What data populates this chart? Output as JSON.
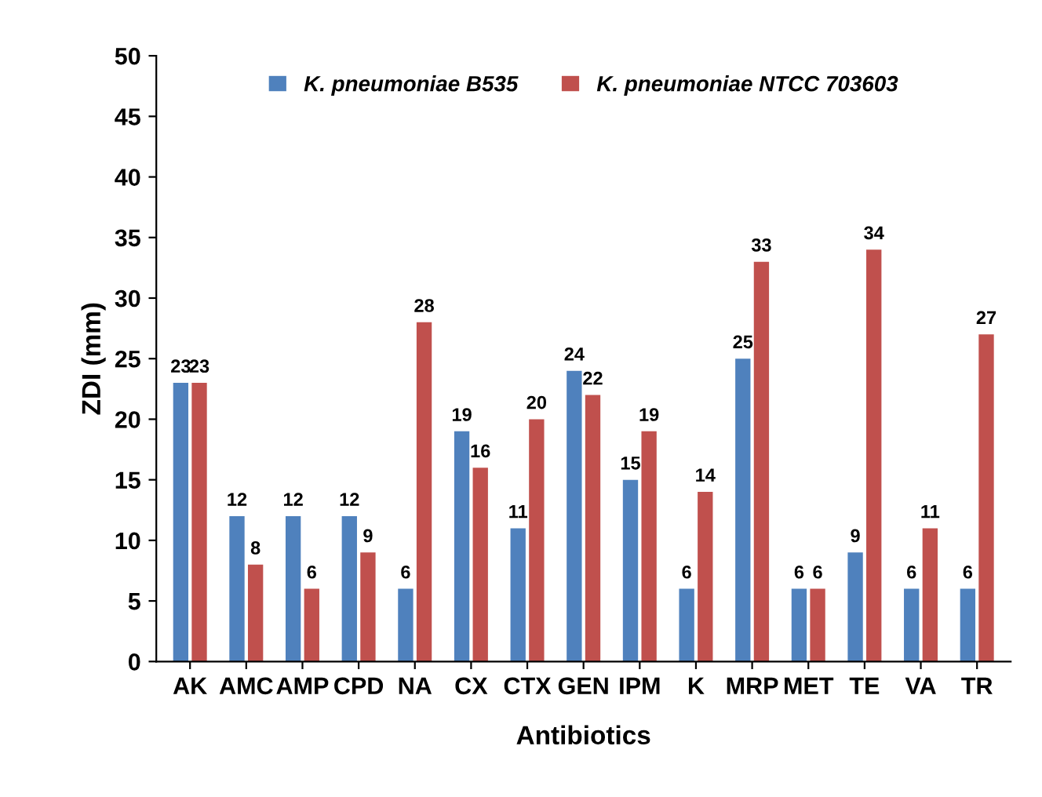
{
  "chart_data": {
    "type": "bar",
    "xlabel": "Antibiotics",
    "ylabel": "ZDI (mm)",
    "categories": [
      "AK",
      "AMC",
      "AMP",
      "CPD",
      "NA",
      "CX",
      "CTX",
      "GEN",
      "IPM",
      "K",
      "MRP",
      "MET",
      "TE",
      "VA",
      "TR"
    ],
    "series": [
      {
        "name": "K. pneumoniae B535",
        "color": "#4f81bd",
        "values": [
          23,
          12,
          12,
          12,
          6,
          19,
          11,
          24,
          15,
          6,
          25,
          6,
          9,
          6,
          6
        ]
      },
      {
        "name": "K. pneumoniae NTCC 703603",
        "color": "#c0504d",
        "values": [
          23,
          8,
          6,
          9,
          28,
          16,
          20,
          22,
          19,
          14,
          33,
          6,
          34,
          11,
          27
        ]
      }
    ],
    "ylim": [
      0,
      50
    ],
    "yticks": [
      0,
      5,
      10,
      15,
      20,
      25,
      30,
      35,
      40,
      45,
      50
    ],
    "data_labels": true,
    "legend": "top",
    "grid": false
  }
}
